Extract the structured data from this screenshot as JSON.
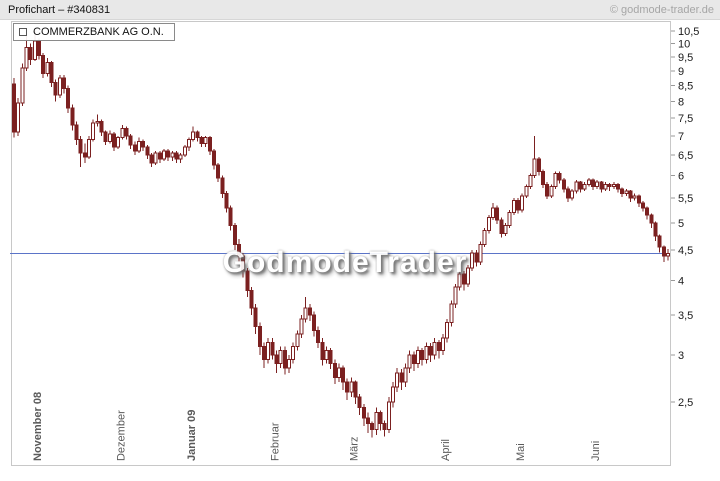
{
  "header": {
    "title": "Profichart – #340831",
    "copyright": "© godmode-trader.de"
  },
  "legend": {
    "label": "COMMERZBANK AG O.N."
  },
  "watermark": "GodmodeTrader",
  "colors": {
    "background": "#ffffff",
    "header_bg": "#e8e8e8",
    "candle": "#7b2020",
    "candle_up_fill": "#ffffff",
    "price_line": "#5b74c8",
    "frame": "#c8c8c8",
    "tick_mark": "#999999",
    "axis_text": "#1a1a1a",
    "month_text": "#5a5a5a"
  },
  "chart_data": {
    "type": "candlestick",
    "title": "COMMERZBANK AG O.N.",
    "scale": "logarithmic",
    "ylim": [
      1.96,
      10.87
    ],
    "grid": false,
    "price_line": 4.44,
    "y_axis": {
      "side": "right",
      "tick_labels": [
        "10,5",
        "10",
        "9,5",
        "9",
        "8,5",
        "8",
        "7,5",
        "7",
        "6,5",
        "6",
        "5,5",
        "5",
        "4,5",
        "4",
        "3,5",
        "3",
        "2,5"
      ],
      "tick_values": [
        10.5,
        10,
        9.5,
        9,
        8.5,
        8,
        7.5,
        7,
        6.5,
        6,
        5.5,
        5,
        4.5,
        4,
        3.5,
        3,
        2.5
      ]
    },
    "x_axis": {
      "months": [
        {
          "label": "November 08",
          "index": 6,
          "bold": true
        },
        {
          "label": "Dezember",
          "index": 26,
          "bold": false
        },
        {
          "label": "Januar 09",
          "index": 43,
          "bold": true
        },
        {
          "label": "Februar",
          "index": 63,
          "bold": false
        },
        {
          "label": "März",
          "index": 82,
          "bold": false
        },
        {
          "label": "April",
          "index": 104,
          "bold": false
        },
        {
          "label": "Mai",
          "index": 122,
          "bold": false
        },
        {
          "label": "Juni",
          "index": 140,
          "bold": false
        }
      ]
    },
    "ohlc": [
      [
        8.55,
        8.75,
        6.95,
        7.1
      ],
      [
        7.1,
        8.1,
        7.0,
        7.95
      ],
      [
        7.95,
        9.25,
        7.85,
        9.1
      ],
      [
        9.1,
        10.4,
        9.0,
        9.85
      ],
      [
        9.85,
        10.0,
        9.2,
        9.4
      ],
      [
        9.4,
        10.52,
        9.35,
        10.1
      ],
      [
        10.1,
        10.2,
        9.4,
        9.55
      ],
      [
        9.55,
        9.65,
        8.75,
        8.9
      ],
      [
        8.9,
        9.45,
        8.8,
        9.3
      ],
      [
        9.3,
        9.35,
        8.45,
        8.6
      ],
      [
        8.6,
        8.7,
        8.0,
        8.2
      ],
      [
        8.2,
        8.85,
        8.1,
        8.75
      ],
      [
        8.75,
        8.85,
        8.25,
        8.4
      ],
      [
        8.4,
        8.5,
        7.65,
        7.8
      ],
      [
        7.8,
        7.9,
        7.15,
        7.3
      ],
      [
        7.3,
        7.4,
        6.75,
        6.9
      ],
      [
        6.9,
        7.0,
        6.2,
        6.55
      ],
      [
        6.55,
        6.8,
        6.3,
        6.45
      ],
      [
        6.45,
        7.0,
        6.4,
        6.9
      ],
      [
        6.9,
        7.45,
        6.85,
        7.35
      ],
      [
        7.35,
        7.6,
        7.25,
        7.4
      ],
      [
        7.4,
        7.45,
        7.0,
        7.1
      ],
      [
        7.1,
        7.15,
        6.75,
        6.85
      ],
      [
        6.85,
        7.15,
        6.8,
        7.05
      ],
      [
        7.05,
        7.1,
        6.6,
        6.7
      ],
      [
        6.7,
        7.0,
        6.65,
        6.95
      ],
      [
        6.95,
        7.3,
        6.9,
        7.2
      ],
      [
        7.2,
        7.25,
        6.9,
        7.0
      ],
      [
        7.0,
        7.05,
        6.65,
        6.75
      ],
      [
        6.75,
        6.85,
        6.5,
        6.6
      ],
      [
        6.6,
        6.95,
        6.55,
        6.85
      ],
      [
        6.85,
        6.9,
        6.6,
        6.7
      ],
      [
        6.7,
        6.75,
        6.4,
        6.5
      ],
      [
        6.5,
        6.55,
        6.2,
        6.3
      ],
      [
        6.3,
        6.6,
        6.25,
        6.55
      ],
      [
        6.55,
        6.6,
        6.3,
        6.4
      ],
      [
        6.4,
        6.65,
        6.35,
        6.6
      ],
      [
        6.6,
        6.65,
        6.35,
        6.45
      ],
      [
        6.45,
        6.6,
        6.35,
        6.55
      ],
      [
        6.55,
        6.6,
        6.3,
        6.4
      ],
      [
        6.4,
        6.55,
        6.3,
        6.5
      ],
      [
        6.5,
        6.75,
        6.45,
        6.7
      ],
      [
        6.7,
        6.95,
        6.6,
        6.9
      ],
      [
        6.9,
        7.25,
        6.85,
        7.1
      ],
      [
        7.1,
        7.15,
        6.85,
        6.95
      ],
      [
        6.95,
        7.0,
        6.7,
        6.8
      ],
      [
        6.8,
        7.0,
        6.7,
        6.95
      ],
      [
        6.95,
        7.0,
        6.5,
        6.6
      ],
      [
        6.6,
        6.65,
        6.15,
        6.25
      ],
      [
        6.25,
        6.3,
        5.85,
        5.95
      ],
      [
        5.95,
        6.0,
        5.5,
        5.6
      ],
      [
        5.6,
        5.65,
        5.2,
        5.3
      ],
      [
        5.3,
        5.35,
        4.85,
        4.95
      ],
      [
        4.95,
        5.0,
        4.5,
        4.6
      ],
      [
        4.6,
        4.7,
        4.3,
        4.4
      ],
      [
        4.4,
        4.45,
        4.05,
        4.15
      ],
      [
        4.15,
        4.2,
        3.75,
        3.85
      ],
      [
        3.85,
        3.9,
        3.5,
        3.6
      ],
      [
        3.6,
        3.65,
        3.25,
        3.35
      ],
      [
        3.35,
        3.4,
        3.0,
        3.1
      ],
      [
        3.1,
        3.15,
        2.85,
        2.95
      ],
      [
        2.95,
        3.2,
        2.9,
        3.15
      ],
      [
        3.15,
        3.2,
        2.95,
        3.0
      ],
      [
        3.0,
        3.05,
        2.8,
        2.9
      ],
      [
        2.9,
        3.1,
        2.85,
        3.05
      ],
      [
        3.05,
        3.1,
        2.78,
        2.85
      ],
      [
        2.85,
        3.0,
        2.8,
        2.95
      ],
      [
        2.95,
        3.15,
        2.9,
        3.1
      ],
      [
        3.1,
        3.3,
        3.05,
        3.25
      ],
      [
        3.25,
        3.5,
        3.2,
        3.45
      ],
      [
        3.45,
        3.75,
        3.4,
        3.6
      ],
      [
        3.6,
        3.65,
        3.42,
        3.5
      ],
      [
        3.5,
        3.55,
        3.22,
        3.3
      ],
      [
        3.3,
        3.35,
        3.08,
        3.15
      ],
      [
        3.15,
        3.2,
        2.88,
        2.95
      ],
      [
        2.95,
        3.1,
        2.9,
        3.05
      ],
      [
        3.05,
        3.08,
        2.84,
        2.9
      ],
      [
        2.9,
        2.95,
        2.68,
        2.75
      ],
      [
        2.75,
        2.9,
        2.7,
        2.85
      ],
      [
        2.85,
        2.88,
        2.62,
        2.7
      ],
      [
        2.7,
        2.74,
        2.52,
        2.6
      ],
      [
        2.6,
        2.75,
        2.55,
        2.7
      ],
      [
        2.7,
        2.72,
        2.48,
        2.55
      ],
      [
        2.55,
        2.58,
        2.38,
        2.45
      ],
      [
        2.45,
        2.48,
        2.28,
        2.35
      ],
      [
        2.35,
        2.4,
        2.22,
        2.3
      ],
      [
        2.3,
        2.32,
        2.18,
        2.25
      ],
      [
        2.25,
        2.45,
        2.2,
        2.4
      ],
      [
        2.4,
        2.42,
        2.24,
        2.3
      ],
      [
        2.3,
        2.33,
        2.19,
        2.25
      ],
      [
        2.25,
        2.55,
        2.22,
        2.5
      ],
      [
        2.5,
        2.7,
        2.45,
        2.65
      ],
      [
        2.65,
        2.85,
        2.6,
        2.8
      ],
      [
        2.8,
        2.84,
        2.62,
        2.7
      ],
      [
        2.7,
        2.9,
        2.65,
        2.85
      ],
      [
        2.85,
        3.05,
        2.8,
        3.0
      ],
      [
        3.0,
        3.04,
        2.82,
        2.9
      ],
      [
        2.9,
        3.1,
        2.85,
        3.05
      ],
      [
        3.05,
        3.08,
        2.88,
        2.95
      ],
      [
        2.95,
        3.15,
        2.9,
        3.1
      ],
      [
        3.1,
        3.14,
        2.92,
        3.0
      ],
      [
        3.0,
        3.2,
        2.95,
        3.15
      ],
      [
        3.15,
        3.18,
        2.96,
        3.05
      ],
      [
        3.05,
        3.25,
        3.0,
        3.2
      ],
      [
        3.2,
        3.45,
        3.15,
        3.4
      ],
      [
        3.4,
        3.7,
        3.35,
        3.65
      ],
      [
        3.65,
        3.95,
        3.6,
        3.9
      ],
      [
        3.9,
        4.15,
        3.85,
        4.1
      ],
      [
        4.1,
        4.15,
        3.85,
        3.95
      ],
      [
        3.95,
        4.25,
        3.9,
        4.2
      ],
      [
        4.2,
        4.5,
        4.15,
        4.45
      ],
      [
        4.45,
        4.5,
        4.22,
        4.3
      ],
      [
        4.3,
        4.65,
        4.25,
        4.6
      ],
      [
        4.6,
        4.9,
        4.55,
        4.85
      ],
      [
        4.85,
        5.15,
        4.8,
        5.1
      ],
      [
        5.1,
        5.4,
        5.05,
        5.3
      ],
      [
        5.3,
        5.35,
        4.98,
        5.05
      ],
      [
        5.05,
        5.1,
        4.72,
        4.8
      ],
      [
        4.8,
        5.0,
        4.75,
        4.95
      ],
      [
        4.95,
        5.25,
        4.9,
        5.2
      ],
      [
        5.2,
        5.5,
        5.15,
        5.45
      ],
      [
        5.45,
        5.5,
        5.18,
        5.25
      ],
      [
        5.25,
        5.6,
        5.2,
        5.55
      ],
      [
        5.55,
        5.8,
        5.5,
        5.75
      ],
      [
        5.75,
        6.05,
        5.7,
        6.0
      ],
      [
        6.0,
        7.0,
        5.95,
        6.4
      ],
      [
        6.4,
        6.45,
        6.0,
        6.1
      ],
      [
        6.1,
        6.15,
        5.72,
        5.8
      ],
      [
        5.8,
        5.85,
        5.48,
        5.55
      ],
      [
        5.55,
        5.8,
        5.5,
        5.75
      ],
      [
        5.75,
        6.1,
        5.7,
        6.05
      ],
      [
        6.05,
        6.1,
        5.82,
        5.9
      ],
      [
        5.9,
        5.95,
        5.62,
        5.7
      ],
      [
        5.7,
        5.75,
        5.42,
        5.5
      ],
      [
        5.5,
        5.7,
        5.45,
        5.65
      ],
      [
        5.65,
        5.9,
        5.6,
        5.85
      ],
      [
        5.85,
        5.88,
        5.62,
        5.7
      ],
      [
        5.7,
        5.85,
        5.65,
        5.8
      ],
      [
        5.8,
        5.95,
        5.75,
        5.9
      ],
      [
        5.9,
        5.93,
        5.68,
        5.75
      ],
      [
        5.75,
        5.9,
        5.7,
        5.85
      ],
      [
        5.85,
        5.88,
        5.62,
        5.7
      ],
      [
        5.7,
        5.85,
        5.65,
        5.8
      ],
      [
        5.8,
        5.83,
        5.65,
        5.75
      ],
      [
        5.75,
        5.85,
        5.7,
        5.8
      ],
      [
        5.8,
        5.83,
        5.62,
        5.7
      ],
      [
        5.7,
        5.73,
        5.52,
        5.6
      ],
      [
        5.6,
        5.7,
        5.55,
        5.65
      ],
      [
        5.65,
        5.68,
        5.42,
        5.5
      ],
      [
        5.5,
        5.6,
        5.45,
        5.55
      ],
      [
        5.55,
        5.58,
        5.32,
        5.4
      ],
      [
        5.4,
        5.44,
        5.22,
        5.3
      ],
      [
        5.3,
        5.33,
        5.06,
        5.15
      ],
      [
        5.15,
        5.18,
        4.9,
        5.0
      ],
      [
        5.0,
        5.03,
        4.66,
        4.75
      ],
      [
        4.75,
        4.78,
        4.46,
        4.55
      ],
      [
        4.55,
        4.58,
        4.3,
        4.4
      ],
      [
        4.4,
        4.52,
        4.32,
        4.44
      ]
    ]
  }
}
